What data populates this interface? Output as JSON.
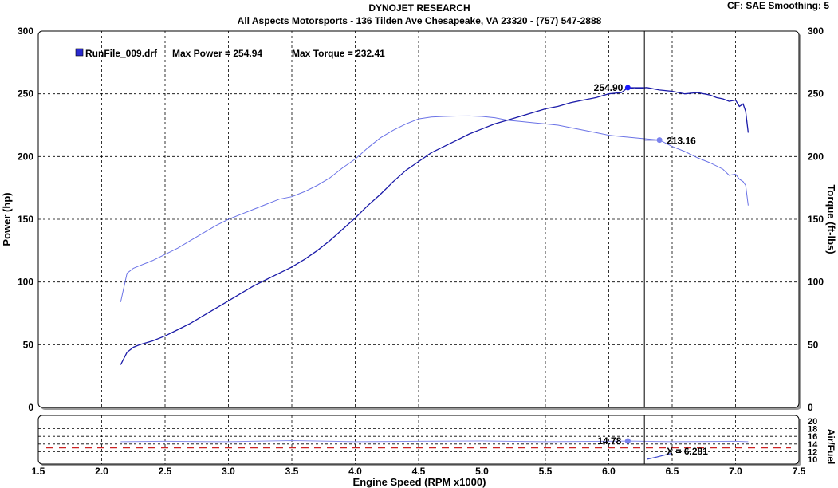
{
  "header": {
    "title": "DYNOJET RESEARCH",
    "subtitle": "All Aspects Motorsports - 136 Tilden Ave  Chesapeake, VA 23320 - (757) 547-2888",
    "cf_info": "CF: SAE  Smoothing: 5"
  },
  "chart_data": [
    {
      "type": "line",
      "xlabel": "Engine Speed (RPM x1000)",
      "ylabel": "Power (hp)",
      "y2label": "Torque (ft-lbs)",
      "xlim": [
        1.5,
        7.5
      ],
      "ylim": [
        0,
        300
      ],
      "y2lim": [
        0,
        300
      ],
      "xticks": [
        "1.5",
        "2.0",
        "2.5",
        "3.0",
        "3.5",
        "4.0",
        "4.5",
        "5.0",
        "5.5",
        "6.0",
        "6.5",
        "7.0",
        "7.5"
      ],
      "yticks": [
        "0",
        "50",
        "100",
        "150",
        "200",
        "250",
        "300"
      ],
      "grid": true,
      "legend": {
        "position": "top-left",
        "run_label": "RunFile_009.drf",
        "max_power_label": "Max Power = 254.94",
        "max_torque_label": "Max Torque = 232.41"
      },
      "cursor": {
        "x": 6.281,
        "power_marker_x": 6.15,
        "power_marker_y": 254.9,
        "power_label": "254.90",
        "torque_marker_x": 6.4,
        "torque_marker_y": 213.16,
        "torque_label": "213.16"
      },
      "series": [
        {
          "role": "power",
          "color": "#1a1aa8",
          "points": [
            [
              2.15,
              34
            ],
            [
              2.2,
              44
            ],
            [
              2.25,
              48
            ],
            [
              2.3,
              50
            ],
            [
              2.4,
              53
            ],
            [
              2.5,
              57
            ],
            [
              2.6,
              62
            ],
            [
              2.7,
              67
            ],
            [
              2.8,
              73
            ],
            [
              2.9,
              79
            ],
            [
              3.0,
              85
            ],
            [
              3.1,
              91
            ],
            [
              3.2,
              97
            ],
            [
              3.3,
              102
            ],
            [
              3.4,
              107
            ],
            [
              3.5,
              112
            ],
            [
              3.6,
              118
            ],
            [
              3.7,
              125
            ],
            [
              3.8,
              133
            ],
            [
              3.9,
              142
            ],
            [
              4.0,
              151
            ],
            [
              4.1,
              161
            ],
            [
              4.2,
              170
            ],
            [
              4.3,
              180
            ],
            [
              4.4,
              189
            ],
            [
              4.5,
              196
            ],
            [
              4.6,
              203
            ],
            [
              4.7,
              208
            ],
            [
              4.8,
              213
            ],
            [
              4.9,
              218
            ],
            [
              5.0,
              222
            ],
            [
              5.1,
              226
            ],
            [
              5.2,
              229
            ],
            [
              5.3,
              232
            ],
            [
              5.4,
              235
            ],
            [
              5.5,
              238
            ],
            [
              5.6,
              240
            ],
            [
              5.7,
              243
            ],
            [
              5.8,
              245
            ],
            [
              5.9,
              247
            ],
            [
              6.0,
              250
            ],
            [
              6.1,
              251
            ],
            [
              6.15,
              254.9
            ],
            [
              6.2,
              254
            ],
            [
              6.3,
              255
            ],
            [
              6.4,
              253
            ],
            [
              6.5,
              252
            ],
            [
              6.6,
              250
            ],
            [
              6.7,
              251
            ],
            [
              6.8,
              249
            ],
            [
              6.85,
              247
            ],
            [
              6.9,
              246
            ],
            [
              6.95,
              244
            ],
            [
              7.0,
              245
            ],
            [
              7.03,
              240
            ],
            [
              7.06,
              242
            ],
            [
              7.08,
              236
            ],
            [
              7.1,
              219
            ]
          ]
        },
        {
          "role": "torque",
          "color": "#6a72e6",
          "points": [
            [
              2.15,
              84
            ],
            [
              2.2,
              107
            ],
            [
              2.25,
              111
            ],
            [
              2.3,
              113
            ],
            [
              2.4,
              117
            ],
            [
              2.5,
              122
            ],
            [
              2.6,
              127
            ],
            [
              2.7,
              133
            ],
            [
              2.8,
              139
            ],
            [
              2.9,
              145
            ],
            [
              3.0,
              150
            ],
            [
              3.1,
              154
            ],
            [
              3.2,
              158
            ],
            [
              3.3,
              162
            ],
            [
              3.4,
              166
            ],
            [
              3.5,
              168
            ],
            [
              3.6,
              172
            ],
            [
              3.7,
              177
            ],
            [
              3.8,
              183
            ],
            [
              3.9,
              191
            ],
            [
              4.0,
              198
            ],
            [
              4.1,
              207
            ],
            [
              4.2,
              215
            ],
            [
              4.3,
              221
            ],
            [
              4.4,
              226
            ],
            [
              4.5,
              230
            ],
            [
              4.6,
              231.5
            ],
            [
              4.7,
              232
            ],
            [
              4.8,
              232.3
            ],
            [
              4.9,
              232.4
            ],
            [
              5.0,
              232
            ],
            [
              5.1,
              231
            ],
            [
              5.2,
              229
            ],
            [
              5.3,
              228
            ],
            [
              5.4,
              227
            ],
            [
              5.5,
              226
            ],
            [
              5.6,
              225
            ],
            [
              5.7,
              223
            ],
            [
              5.8,
              221
            ],
            [
              5.9,
              219
            ],
            [
              6.0,
              217
            ],
            [
              6.1,
              216
            ],
            [
              6.2,
              215
            ],
            [
              6.3,
              214
            ],
            [
              6.4,
              213.16
            ],
            [
              6.5,
              208
            ],
            [
              6.6,
              204
            ],
            [
              6.7,
              199
            ],
            [
              6.8,
              195
            ],
            [
              6.9,
              190
            ],
            [
              6.95,
              185
            ],
            [
              7.0,
              186
            ],
            [
              7.03,
              182
            ],
            [
              7.06,
              180
            ],
            [
              7.08,
              177
            ],
            [
              7.1,
              161
            ]
          ]
        }
      ]
    },
    {
      "type": "line",
      "ylabel": "Air/Fuel",
      "ylim": [
        10,
        20
      ],
      "yticks": [
        "10",
        "12",
        "14",
        "16",
        "18",
        "20"
      ],
      "grid": true,
      "reference_line": {
        "y": 13.0,
        "color": "#cc2222",
        "style": "dashed"
      },
      "cursor_label": "X = 6.281",
      "marker": {
        "x": 6.15,
        "y": 14.78,
        "label": "14.78"
      },
      "series": [
        {
          "role": "air-fuel",
          "color": "#8a90ee",
          "points": [
            [
              2.15,
              14.6
            ],
            [
              2.5,
              14.7
            ],
            [
              3.0,
              14.6
            ],
            [
              3.5,
              14.9
            ],
            [
              4.0,
              14.6
            ],
            [
              4.5,
              14.7
            ],
            [
              5.0,
              14.8
            ],
            [
              5.5,
              14.6
            ],
            [
              6.0,
              14.7
            ],
            [
              6.15,
              14.78
            ],
            [
              6.5,
              14.6
            ],
            [
              7.0,
              14.7
            ],
            [
              7.1,
              14.6
            ]
          ]
        },
        {
          "role": "air-fuel-cursor-trace",
          "color": "#3a44cc",
          "points": [
            [
              6.3,
              10.0
            ],
            [
              6.38,
              10.6
            ],
            [
              6.45,
              11.2
            ],
            [
              6.5,
              11.6
            ]
          ]
        }
      ]
    }
  ]
}
